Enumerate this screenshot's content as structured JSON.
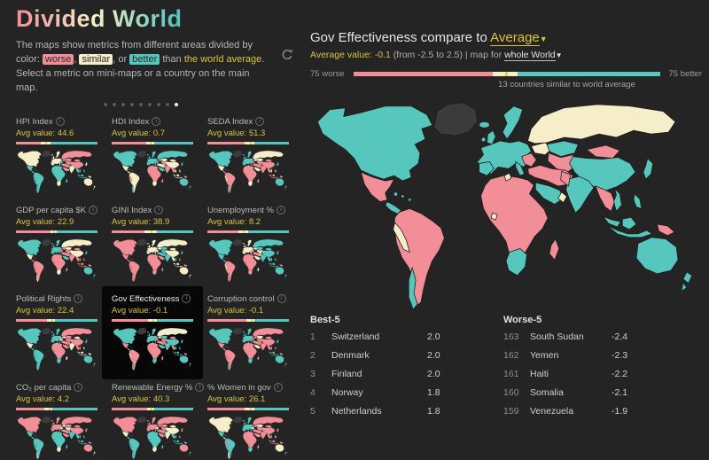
{
  "colors": {
    "worse": "#f28e97",
    "similar": "#f6eec9",
    "better": "#57c7be",
    "nodata": "#3b3b3b",
    "yellow": "#d8c53c"
  },
  "header": {
    "title": "Divided World",
    "description_segments": [
      {
        "t": "text",
        "s": "The maps show metrics from different areas divided by color: "
      },
      {
        "t": "worse",
        "s": "worse"
      },
      {
        "t": "text",
        "s": ", "
      },
      {
        "t": "similar",
        "s": "similar"
      },
      {
        "t": "text",
        "s": ", or "
      },
      {
        "t": "better",
        "s": "better"
      },
      {
        "t": "text",
        "s": " than "
      },
      {
        "t": "avg",
        "s": "the world average"
      },
      {
        "t": "text",
        "s": ". Select a metric on mini-maps or a country on the main map."
      }
    ],
    "dots": {
      "count": 9,
      "active_index": 8
    }
  },
  "region_order": [
    "greenland",
    "namerica",
    "mexico",
    "camerica",
    "samerica",
    "peru",
    "chile",
    "europe",
    "balkans",
    "ukraine",
    "russia",
    "kazakh",
    "stans",
    "mongolia",
    "china",
    "japan",
    "mideast",
    "saudi",
    "oman",
    "africa",
    "tunisia",
    "ghana",
    "safrica",
    "madagascar",
    "india",
    "pakistan",
    "seasia",
    "vietnam",
    "indonesia",
    "philippines",
    "png",
    "australia",
    "nz"
  ],
  "minimaps": {
    "tiles": [
      {
        "label": "HPI Index",
        "avg": "Avg value: 44.6",
        "bar": [
          30,
          12
        ],
        "fills": "nsbbbbbsbwwwwwwswwsbbbsbsbbbbbsss",
        "selected": false
      },
      {
        "label": "HDI Index",
        "avg": "Avg value: 0.7",
        "bar": [
          42,
          10
        ],
        "fills": "nbssswbbbbbswssbsbbwbwswwwwssswbb",
        "selected": false
      },
      {
        "label": "SEDA Index",
        "avg": "Avg value: 51.3",
        "bar": [
          46,
          12
        ],
        "fills": "nbswwsbbwssswwwbwsswswswwwwswswbb",
        "selected": false
      },
      {
        "label": "GDP per capita $K",
        "avg": "Avg value: 22.9",
        "bar": [
          42,
          8
        ],
        "fills": "nbswwwsbwwsswwsbwbbwwwswwwwwwwwbb",
        "selected": false
      },
      {
        "label": "GINI Index",
        "avg": "Avg value: 38.9",
        "bar": [
          40,
          15
        ],
        "fills": "nwwwwwwssssbbssbbwbwbwwwbbsbswwss",
        "selected": false
      },
      {
        "label": "Unemployment %",
        "avg": "Avg value: 8.2",
        "bar": [
          38,
          12
        ],
        "fills": "nbbbwswswsbbsbbbwsswwbwsbsbbbbwbb",
        "selected": false
      },
      {
        "label": "Political Rights",
        "avg": "Avg value: 22.4",
        "bar": [
          38,
          10
        ],
        "fills": "nbsbbbbbsswwwswbwwwwsbbsswwwsssbb",
        "selected": false
      },
      {
        "label": "Gov Effectiveness",
        "avg": "Avg value: -0.1",
        "bar": [
          45,
          10
        ],
        "fills": "nbwbwsbbwssbwwbbwbswssbwbwwbbbwbb",
        "selected": true
      },
      {
        "label": "Corruption control",
        "avg": "Avg value: -0.1",
        "bar": [
          48,
          10
        ],
        "fills": "nbwwwwbbwwwswwwbwsswssbwwwwwbwwbb",
        "selected": false
      },
      {
        "label": "CO₂ per capita",
        "avg": "Avg value: 4.2",
        "bar": [
          35,
          10
        ],
        "fills": "nwbbbbswsswwswwwwwwbbbsbbbbbbbbws",
        "selected": false
      },
      {
        "label": "Renewable Energy %",
        "avg": "Avg value: 40.3",
        "bar": [
          44,
          8
        ],
        "fills": "nwsbbbbwswwwwsswwwwbwbsbsbbbbbbwb",
        "selected": false
      },
      {
        "label": "% Women in gov",
        "avg": "Avg value: 26.1",
        "bar": [
          46,
          12
        ],
        "fills": "nsbsbwsbswwswwwwwwswssbwwwwbwswsb",
        "selected": false
      }
    ]
  },
  "main": {
    "title_prefix": "Gov Effectiveness compare to ",
    "dropdown_label": "Average",
    "subline": {
      "avg": "Average value: -0.1",
      "mid": " (from -2.5 to 2.5) | map for ",
      "scope": "whole World"
    },
    "legend": {
      "left": "75 worse",
      "right": "75 better",
      "note": "13 countries similar to world average",
      "worse_pct": 45.5,
      "similar_pct": 8
    },
    "map_fills": "nbwbwsbbwssbwwbbwbswssbwbwwbbbwbb",
    "tables": {
      "best": {
        "header": "Best-5",
        "rows": [
          {
            "rank": "1",
            "name": "Switzerland",
            "value": "2.0"
          },
          {
            "rank": "2",
            "name": "Denmark",
            "value": "2.0"
          },
          {
            "rank": "3",
            "name": "Finland",
            "value": "2.0"
          },
          {
            "rank": "4",
            "name": "Norway",
            "value": "1.8"
          },
          {
            "rank": "5",
            "name": "Netherlands",
            "value": "1.8"
          }
        ]
      },
      "worse": {
        "header": "Worse-5",
        "rows": [
          {
            "rank": "163",
            "name": "South Sudan",
            "value": "-2.4"
          },
          {
            "rank": "162",
            "name": "Yemen",
            "value": "-2.3"
          },
          {
            "rank": "161",
            "name": "Haiti",
            "value": "-2.2"
          },
          {
            "rank": "160",
            "name": "Somalia",
            "value": "-2.1"
          },
          {
            "rank": "159",
            "name": "Venezuela",
            "value": "-1.9"
          }
        ]
      }
    }
  },
  "icons": {
    "info": "i",
    "caret_down": "▼"
  }
}
